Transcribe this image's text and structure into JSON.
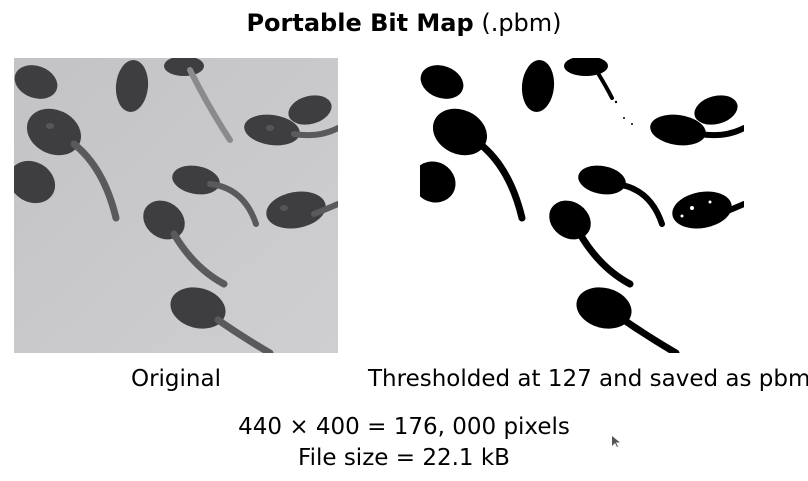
{
  "title": {
    "bold": "Portable Bit Map",
    "paren": "(.pbm)"
  },
  "images": {
    "original_caption": "Original",
    "threshold_caption": "Thresholded at 127 and saved as pbm"
  },
  "stats": {
    "pixels": "440 × 400 = 176, 000 pixels",
    "file_size": "File size = 22.1 kB"
  },
  "colors": {
    "background": "#ffffff",
    "original_bg": "#c8c8ca",
    "tadpole_gray": "#3d3d3f",
    "tail_gray": "#6a6a6c",
    "bitmap_black": "#000000"
  }
}
